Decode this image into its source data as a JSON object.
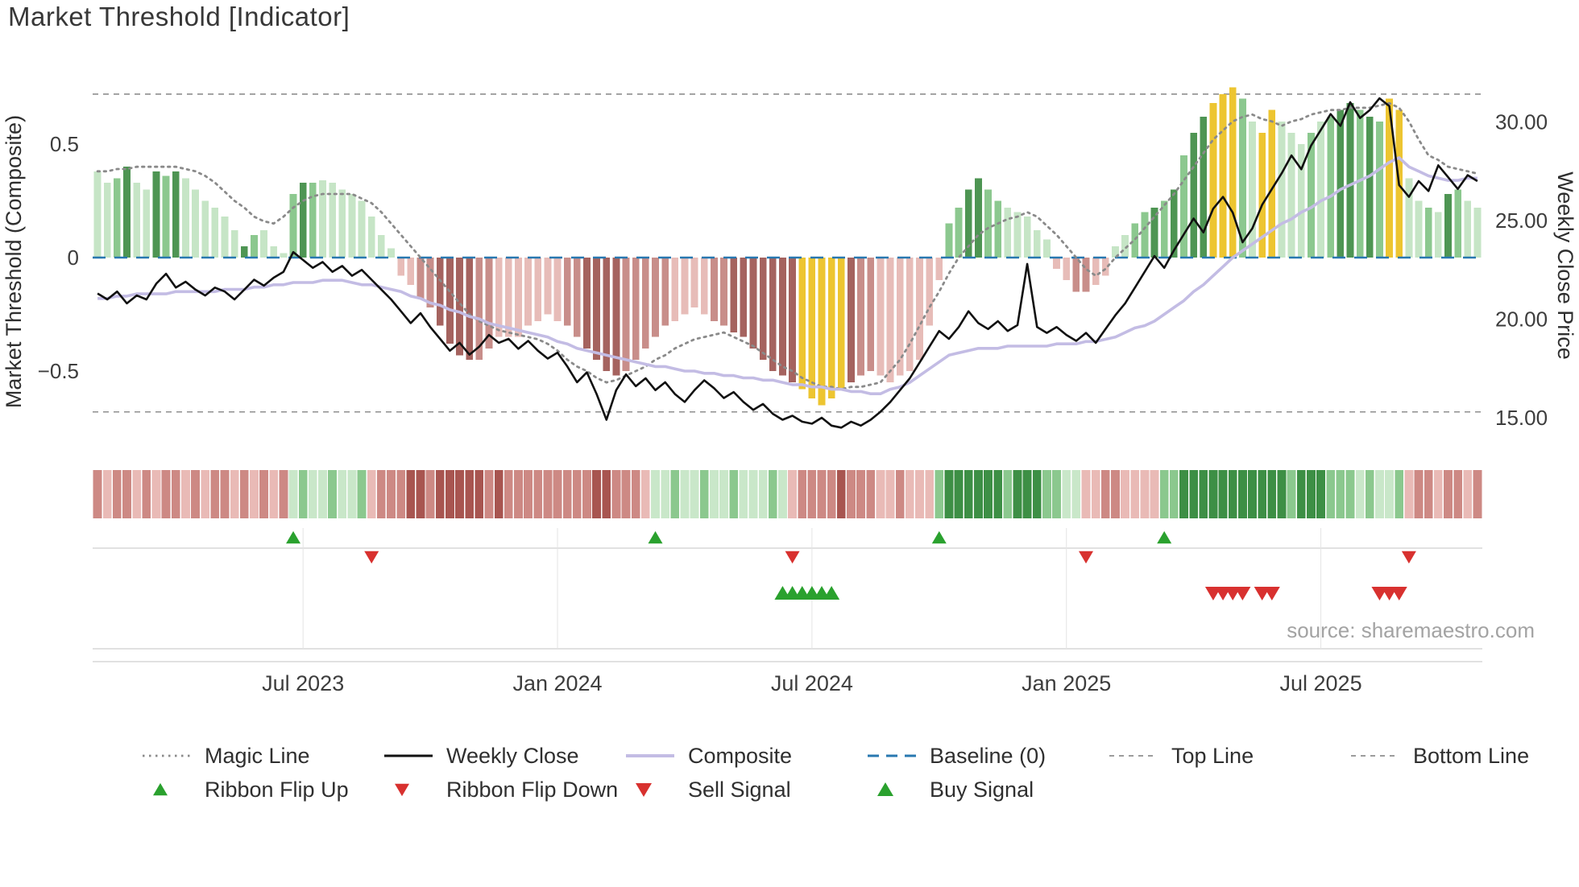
{
  "title": "Market Threshold [Indicator]",
  "source_text": "source: sharemaestro.com",
  "axes": {
    "left_label": "Market Threshold (Composite)",
    "right_label": "Weekly Close Price"
  },
  "legend": {
    "magic_line": "Magic Line",
    "weekly_close": "Weekly Close",
    "composite": "Composite",
    "baseline": "Baseline (0)",
    "top_line": "Top Line",
    "bottom_line": "Bottom Line",
    "ribbon_flip_up": "Ribbon Flip Up",
    "ribbon_flip_down": "Ribbon Flip Down",
    "sell_signal": "Sell Signal",
    "buy_signal": "Buy Signal"
  },
  "chart_data": {
    "type": "bar+line combo, dual y-axis, weekly",
    "x_start_date": "2023-02-06",
    "x_interval": "1 week",
    "x_tick_labels": [
      "Jul 2023",
      "Jan 2024",
      "Jul 2024",
      "Jan 2025",
      "Jul 2025"
    ],
    "x_tick_weeks": [
      21,
      47,
      73,
      99,
      125
    ],
    "left_axis": {
      "label": "Market Threshold (Composite)",
      "ticks": [
        {
          "label": "0.5",
          "value": 0.5
        },
        {
          "label": "0",
          "value": 0
        },
        {
          "label": "−0.5",
          "value": -0.5
        }
      ],
      "range": [
        -0.88,
        0.85
      ]
    },
    "right_axis": {
      "label": "Weekly Close Price",
      "ticks": [
        {
          "label": "30.00",
          "value": 30
        },
        {
          "label": "25.00",
          "value": 25
        },
        {
          "label": "20.00",
          "value": 20
        },
        {
          "label": "15.00",
          "value": 15
        }
      ],
      "range": [
        12.9,
        32.9
      ]
    },
    "top_line": 0.72,
    "bottom_line": -0.68,
    "baseline": 0,
    "threshold_bars": [
      0.38,
      0.33,
      0.35,
      0.4,
      0.33,
      0.3,
      0.38,
      0.36,
      0.38,
      0.35,
      0.3,
      0.25,
      0.22,
      0.18,
      0.12,
      0.05,
      0.1,
      0.12,
      0.05,
      0.02,
      0.28,
      0.33,
      0.33,
      0.34,
      0.33,
      0.3,
      0.28,
      0.25,
      0.18,
      0.1,
      0.04,
      -0.08,
      -0.12,
      -0.18,
      -0.22,
      -0.3,
      -0.38,
      -0.43,
      -0.45,
      -0.45,
      -0.4,
      -0.35,
      -0.35,
      -0.35,
      -0.3,
      -0.28,
      -0.25,
      -0.28,
      -0.3,
      -0.35,
      -0.4,
      -0.45,
      -0.5,
      -0.52,
      -0.5,
      -0.45,
      -0.4,
      -0.35,
      -0.3,
      -0.28,
      -0.25,
      -0.22,
      -0.25,
      -0.28,
      -0.3,
      -0.33,
      -0.35,
      -0.4,
      -0.45,
      -0.5,
      -0.52,
      -0.55,
      -0.58,
      -0.62,
      -0.65,
      -0.62,
      -0.58,
      -0.55,
      -0.52,
      -0.5,
      -0.52,
      -0.55,
      -0.52,
      -0.5,
      -0.45,
      -0.3,
      -0.1,
      0.15,
      0.22,
      0.3,
      0.35,
      0.3,
      0.25,
      0.22,
      0.2,
      0.18,
      0.12,
      0.08,
      -0.05,
      -0.1,
      -0.15,
      -0.15,
      -0.12,
      -0.08,
      0.05,
      0.1,
      0.15,
      0.2,
      0.22,
      0.25,
      0.3,
      0.45,
      0.55,
      0.62,
      0.68,
      0.72,
      0.75,
      0.7,
      0.6,
      0.55,
      0.65,
      0.6,
      0.55,
      0.5,
      0.55,
      0.6,
      0.62,
      0.65,
      0.68,
      0.65,
      0.62,
      0.6,
      0.7,
      0.65,
      0.35,
      0.25,
      0.22,
      0.2,
      0.28,
      0.3,
      0.25,
      0.22
    ],
    "bar_shades": [
      "g1",
      "g1",
      "g2",
      "g3",
      "g1",
      "g1",
      "g3",
      "g2",
      "g3",
      "g1",
      "g1",
      "g1",
      "g1",
      "g1",
      "g1",
      "g3",
      "g2",
      "g1",
      "g1",
      "g1",
      "g2",
      "g3",
      "g2",
      "g1",
      "g1",
      "g1",
      "g1",
      "g1",
      "g1",
      "g1",
      "g1",
      "r1",
      "r1",
      "r2",
      "r2",
      "r3",
      "r3",
      "r3",
      "r3",
      "r2",
      "r2",
      "r1",
      "r1",
      "r1",
      "r1",
      "r1",
      "r1",
      "r1",
      "r2",
      "r2",
      "r3",
      "r3",
      "r3",
      "r3",
      "r2",
      "r2",
      "r2",
      "r2",
      "r2",
      "r1",
      "r1",
      "r1",
      "r1",
      "r2",
      "r2",
      "r3",
      "r3",
      "r3",
      "r3",
      "r3",
      "r3",
      "r3",
      "gold",
      "gold",
      "gold",
      "gold",
      "gold",
      "r3",
      "r2",
      "r2",
      "r1",
      "r1",
      "r1",
      "r1",
      "r1",
      "r1",
      "r1",
      "g2",
      "g2",
      "g3",
      "g3",
      "g2",
      "g2",
      "g1",
      "g1",
      "g1",
      "g1",
      "g1",
      "r1",
      "r1",
      "r2",
      "r2",
      "r1",
      "r1",
      "g1",
      "g1",
      "g2",
      "g2",
      "g3",
      "g2",
      "g3",
      "g2",
      "g3",
      "g3",
      "gold",
      "gold",
      "gold",
      "g2",
      "g1",
      "gold",
      "gold",
      "g1",
      "g1",
      "g1",
      "g2",
      "g1",
      "g2",
      "g3",
      "g3",
      "g2",
      "g3",
      "g2",
      "gold",
      "gold",
      "g1",
      "g1",
      "g2",
      "g1",
      "g3",
      "g2",
      "g1",
      "g1"
    ],
    "weekly_close": [
      21.3,
      21.0,
      21.4,
      20.8,
      21.2,
      21.0,
      21.8,
      22.3,
      21.6,
      21.9,
      21.5,
      21.2,
      21.6,
      21.4,
      21.0,
      21.5,
      22.0,
      21.7,
      22.1,
      22.4,
      23.4,
      23.0,
      22.6,
      22.9,
      22.4,
      22.7,
      22.2,
      22.5,
      22.0,
      21.5,
      21.0,
      20.4,
      19.8,
      20.3,
      19.6,
      19.0,
      18.4,
      18.8,
      18.2,
      18.6,
      19.2,
      18.8,
      19.0,
      18.5,
      18.9,
      18.4,
      18.0,
      18.3,
      17.6,
      16.8,
      17.3,
      16.2,
      14.9,
      16.4,
      17.2,
      16.6,
      17.0,
      16.4,
      16.8,
      16.2,
      15.8,
      16.4,
      16.9,
      16.5,
      16.0,
      16.3,
      15.8,
      15.4,
      15.7,
      15.2,
      14.9,
      15.1,
      14.8,
      14.7,
      15.0,
      14.6,
      14.5,
      14.8,
      14.6,
      14.9,
      15.3,
      15.8,
      16.4,
      17.0,
      17.8,
      18.6,
      19.4,
      19.0,
      19.6,
      20.4,
      19.8,
      19.5,
      19.9,
      19.4,
      19.7,
      22.8,
      19.6,
      19.3,
      19.6,
      19.2,
      18.9,
      19.3,
      18.8,
      19.5,
      20.2,
      20.8,
      21.6,
      22.4,
      23.2,
      22.6,
      23.5,
      24.3,
      25.1,
      24.4,
      25.6,
      26.2,
      25.4,
      23.9,
      24.6,
      25.8,
      26.6,
      27.4,
      28.3,
      27.6,
      28.8,
      29.6,
      30.4,
      29.8,
      31.0,
      30.2,
      30.6,
      31.2,
      30.8,
      26.8,
      26.2,
      27.0,
      26.5,
      27.8,
      27.2,
      26.6,
      27.3,
      27.0
    ],
    "composite": [
      -0.18,
      -0.18,
      -0.17,
      -0.17,
      -0.16,
      -0.16,
      -0.16,
      -0.16,
      -0.15,
      -0.15,
      -0.15,
      -0.15,
      -0.15,
      -0.14,
      -0.14,
      -0.14,
      -0.13,
      -0.13,
      -0.12,
      -0.12,
      -0.11,
      -0.11,
      -0.11,
      -0.1,
      -0.1,
      -0.1,
      -0.11,
      -0.12,
      -0.12,
      -0.13,
      -0.14,
      -0.15,
      -0.17,
      -0.18,
      -0.2,
      -0.21,
      -0.23,
      -0.24,
      -0.26,
      -0.27,
      -0.29,
      -0.3,
      -0.31,
      -0.32,
      -0.33,
      -0.34,
      -0.35,
      -0.37,
      -0.38,
      -0.4,
      -0.41,
      -0.42,
      -0.43,
      -0.44,
      -0.45,
      -0.46,
      -0.47,
      -0.48,
      -0.48,
      -0.49,
      -0.5,
      -0.5,
      -0.51,
      -0.51,
      -0.52,
      -0.52,
      -0.53,
      -0.53,
      -0.54,
      -0.54,
      -0.55,
      -0.56,
      -0.56,
      -0.57,
      -0.57,
      -0.58,
      -0.58,
      -0.59,
      -0.59,
      -0.6,
      -0.6,
      -0.58,
      -0.57,
      -0.55,
      -0.52,
      -0.49,
      -0.46,
      -0.43,
      -0.42,
      -0.41,
      -0.4,
      -0.4,
      -0.4,
      -0.39,
      -0.39,
      -0.39,
      -0.39,
      -0.39,
      -0.38,
      -0.38,
      -0.38,
      -0.37,
      -0.37,
      -0.36,
      -0.35,
      -0.33,
      -0.31,
      -0.3,
      -0.28,
      -0.25,
      -0.22,
      -0.19,
      -0.15,
      -0.12,
      -0.08,
      -0.04,
      0.0,
      0.03,
      0.06,
      0.09,
      0.12,
      0.15,
      0.17,
      0.2,
      0.22,
      0.25,
      0.27,
      0.3,
      0.32,
      0.34,
      0.36,
      0.39,
      0.42,
      0.44,
      0.4,
      0.38,
      0.36,
      0.35,
      0.34,
      0.34,
      0.35,
      0.35
    ],
    "magic": [
      0.38,
      0.38,
      0.39,
      0.39,
      0.4,
      0.4,
      0.4,
      0.4,
      0.4,
      0.39,
      0.38,
      0.36,
      0.33,
      0.29,
      0.25,
      0.22,
      0.18,
      0.16,
      0.15,
      0.18,
      0.22,
      0.25,
      0.27,
      0.28,
      0.28,
      0.28,
      0.28,
      0.26,
      0.24,
      0.2,
      0.15,
      0.1,
      0.05,
      0.0,
      -0.05,
      -0.1,
      -0.15,
      -0.2,
      -0.25,
      -0.28,
      -0.3,
      -0.32,
      -0.33,
      -0.34,
      -0.35,
      -0.36,
      -0.38,
      -0.41,
      -0.45,
      -0.48,
      -0.5,
      -0.53,
      -0.55,
      -0.54,
      -0.52,
      -0.5,
      -0.48,
      -0.45,
      -0.43,
      -0.4,
      -0.38,
      -0.36,
      -0.35,
      -0.34,
      -0.33,
      -0.35,
      -0.37,
      -0.39,
      -0.42,
      -0.45,
      -0.48,
      -0.5,
      -0.53,
      -0.55,
      -0.57,
      -0.57,
      -0.58,
      -0.57,
      -0.57,
      -0.56,
      -0.55,
      -0.5,
      -0.45,
      -0.38,
      -0.3,
      -0.22,
      -0.15,
      -0.07,
      0.0,
      0.05,
      0.1,
      0.13,
      0.15,
      0.17,
      0.18,
      0.2,
      0.18,
      0.14,
      0.1,
      0.05,
      0.0,
      -0.05,
      -0.08,
      -0.05,
      0.0,
      0.04,
      0.08,
      0.13,
      0.18,
      0.23,
      0.28,
      0.34,
      0.4,
      0.46,
      0.52,
      0.56,
      0.6,
      0.62,
      0.63,
      0.61,
      0.6,
      0.58,
      0.6,
      0.61,
      0.63,
      0.64,
      0.65,
      0.65,
      0.66,
      0.66,
      0.66,
      0.67,
      0.68,
      0.66,
      0.6,
      0.52,
      0.45,
      0.43,
      0.4,
      0.39,
      0.38,
      0.37
    ],
    "ribbon": [
      "R2",
      "R1",
      "R2",
      "R2",
      "R1",
      "R2",
      "R1",
      "R2",
      "R2",
      "R1",
      "R2",
      "R1",
      "R2",
      "R2",
      "R1",
      "R2",
      "R1",
      "R2",
      "R1",
      "R2",
      "G1",
      "G2",
      "G1",
      "G1",
      "G2",
      "G1",
      "G1",
      "G2",
      "R1",
      "R2",
      "R2",
      "R2",
      "R3",
      "R3",
      "R2",
      "R3",
      "R3",
      "R3",
      "R3",
      "R3",
      "R2",
      "R3",
      "R2",
      "R2",
      "R2",
      "R2",
      "R2",
      "R2",
      "R2",
      "R2",
      "R2",
      "R3",
      "R3",
      "R2",
      "R2",
      "R2",
      "R1",
      "G1",
      "G1",
      "G2",
      "G1",
      "G1",
      "G2",
      "G1",
      "G1",
      "G2",
      "G1",
      "G1",
      "G1",
      "G2",
      "G1",
      "R1",
      "R2",
      "R2",
      "R2",
      "R2",
      "R3",
      "R2",
      "R2",
      "R2",
      "R1",
      "R1",
      "R2",
      "R1",
      "R1",
      "R1",
      "G2",
      "G3",
      "G3",
      "G3",
      "G3",
      "G3",
      "G3",
      "G2",
      "G3",
      "G3",
      "G3",
      "G2",
      "G2",
      "G1",
      "G1",
      "R1",
      "R1",
      "R2",
      "R2",
      "R1",
      "R1",
      "R1",
      "R1",
      "G2",
      "G2",
      "G3",
      "G3",
      "G3",
      "G3",
      "G3",
      "G3",
      "G3",
      "G3",
      "G3",
      "G3",
      "G3",
      "G2",
      "G3",
      "G3",
      "G3",
      "G2",
      "G2",
      "G2",
      "G1",
      "G2",
      "G1",
      "G1",
      "G2",
      "R1",
      "R2",
      "R2",
      "R1",
      "R2",
      "R2",
      "R1",
      "R2"
    ],
    "signals": {
      "ribbon_flip_up_weeks": [
        20,
        57,
        86,
        109
      ],
      "ribbon_flip_down_weeks": [
        28,
        71,
        101,
        134
      ],
      "buy_signal_weeks": [
        70,
        71,
        72,
        73,
        74,
        75
      ],
      "sell_signal_weeks": [
        114,
        115,
        116,
        117,
        119,
        120,
        131,
        132,
        133
      ]
    },
    "colors": {
      "shades": {
        "g1": "#c6e5c6",
        "g2": "#8cc88f",
        "g3": "#4e9553",
        "r1": "#e7bcb8",
        "r2": "#c88e8a",
        "r3": "#a5635f",
        "gold": "#edc531"
      },
      "ribbon": {
        "G1": "#c9e7c9",
        "G2": "#8bc88e",
        "G3": "#3d8f45",
        "R1": "#e9bab6",
        "R2": "#cd8984",
        "R3": "#a85550"
      },
      "magic": "#8a8a8a",
      "close": "#111111",
      "composite": "#c3bce4",
      "baseline": "#2878b0",
      "guide": "#8f8f8f",
      "buy": "#2aa12e",
      "sell": "#d8312f"
    }
  }
}
